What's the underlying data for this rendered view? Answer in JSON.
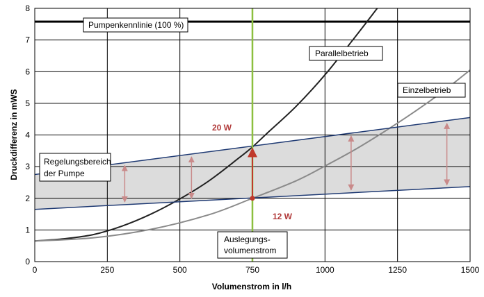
{
  "chart_data": {
    "type": "line",
    "xlabel": "Volumenstrom in l/h",
    "ylabel": "Druckdifferenz in mWS",
    "xlim": [
      0,
      1500
    ],
    "ylim": [
      0,
      8
    ],
    "xticks": [
      "0",
      "250",
      "500",
      "750",
      "1000",
      "1250",
      "1500"
    ],
    "yticks": [
      "0",
      "1",
      "2",
      "3",
      "4",
      "5",
      "6",
      "7",
      "8"
    ],
    "grid": true,
    "series": [
      {
        "name": "Pumpenkennlinie (100 %)",
        "color": "#000000",
        "x": [
          0,
          1500
        ],
        "y": [
          7.58,
          7.58
        ]
      },
      {
        "name": "Parallelbetrieb",
        "color": "#222222",
        "x": [
          0,
          100,
          200,
          300,
          400,
          500,
          600,
          700,
          750,
          800,
          900,
          1000,
          1100,
          1180
        ],
        "y": [
          0.65,
          0.72,
          0.85,
          1.12,
          1.5,
          1.98,
          2.55,
          3.25,
          3.62,
          4.05,
          4.9,
          5.9,
          7.05,
          8.0
        ]
      },
      {
        "name": "Einzelbetrieb",
        "color": "#8a8a8a",
        "x": [
          0,
          200,
          400,
          600,
          750,
          900,
          1000,
          1100,
          1200,
          1300,
          1400,
          1500
        ],
        "y": [
          0.65,
          0.75,
          1.02,
          1.48,
          2.0,
          2.55,
          3.02,
          3.52,
          4.08,
          4.68,
          5.33,
          6.05
        ]
      },
      {
        "name": "Regelungsbereich oben",
        "color": "#1f3a73",
        "x": [
          0,
          1500
        ],
        "y": [
          2.75,
          4.55
        ]
      },
      {
        "name": "Regelungsbereich unten",
        "color": "#1f3a73",
        "x": [
          0,
          1500
        ],
        "y": [
          1.65,
          2.37
        ]
      },
      {
        "name": "Auslegungsvolumenstrom",
        "color": "#8cbf3f",
        "x": [
          750,
          750
        ],
        "y": [
          0,
          8
        ]
      }
    ],
    "annotations": {
      "pump_label": "Pumpenkennlinie (100 %)",
      "parallel_label": "Parallelbetrieb",
      "single_label": "Einzelbetrieb",
      "region_label_line1": "Regelungsbereich",
      "region_label_line2": "der Pumpe",
      "design_label_line1": "Auslegungs-",
      "design_label_line2": "volumenstrom",
      "power_high": "20 W",
      "power_low": "12 W"
    },
    "range_arrows_x": [
      310,
      540,
      1090,
      1420
    ],
    "operating_point": {
      "x": 750,
      "y_low": 2.0,
      "y_high": 3.62
    }
  }
}
